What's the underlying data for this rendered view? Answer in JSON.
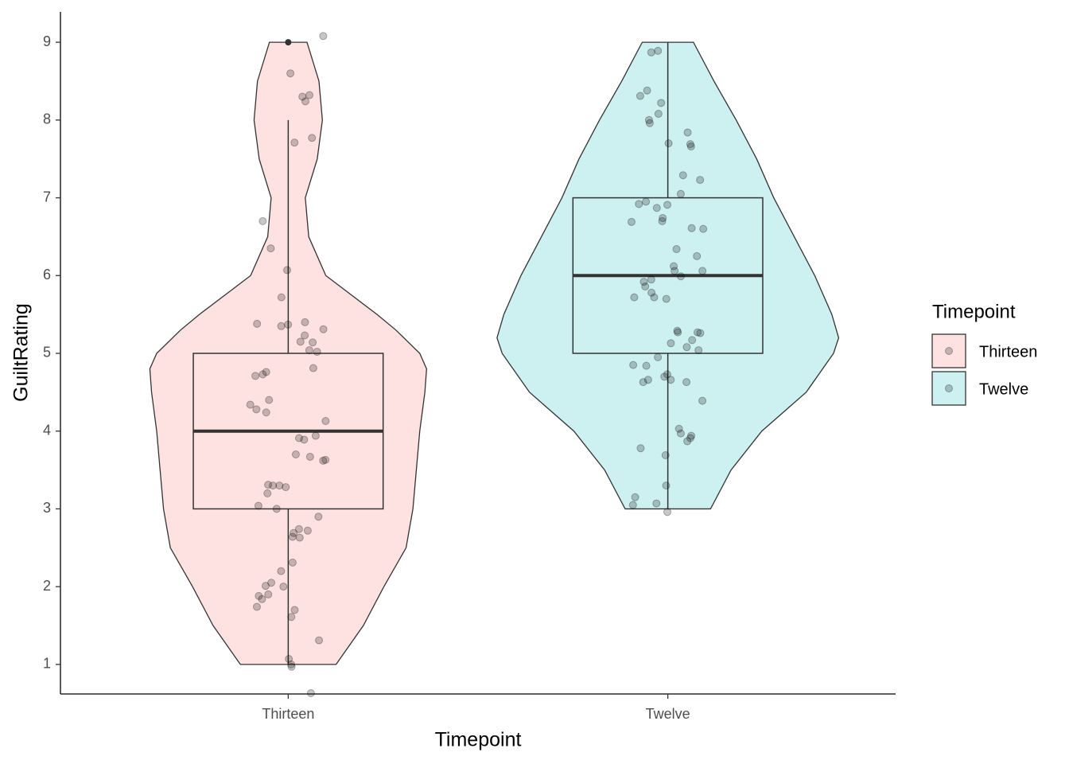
{
  "chart_data": {
    "type": "violin",
    "x_label": "Timepoint",
    "y_label": "GuiltRating",
    "legend_title": "Timepoint",
    "categories": [
      "Thirteen",
      "Twelve"
    ],
    "ylim": [
      0.62,
      9.39
    ],
    "yticks": [
      1,
      2,
      3,
      4,
      5,
      6,
      7,
      8,
      9
    ],
    "series": [
      {
        "name": "Thirteen",
        "color": "#fde2e1",
        "violin": {
          "y": [
            1,
            1.5,
            2,
            2.5,
            3,
            3.5,
            4,
            4.5,
            4.8,
            5,
            5.3,
            5.5,
            6,
            6.5,
            7,
            7.5,
            8,
            8.5,
            9
          ],
          "width": [
            0.28,
            0.44,
            0.56,
            0.69,
            0.73,
            0.75,
            0.77,
            0.8,
            0.81,
            0.77,
            0.63,
            0.52,
            0.22,
            0.12,
            0.1,
            0.17,
            0.2,
            0.18,
            0.11
          ]
        },
        "box": {
          "whisker_low": 1,
          "q1": 3,
          "median": 4,
          "q3": 5,
          "whisker_high": 8
        },
        "outliers": [
          9
        ],
        "points": [
          9.08,
          8.6,
          8.32,
          8.3,
          8.24,
          7.77,
          7.71,
          6.7,
          6.35,
          6.07,
          5.72,
          5.38,
          5.37,
          5.35,
          5.4,
          5.31,
          5.23,
          5.14,
          5.15,
          5.02,
          5.04,
          4.81,
          4.76,
          4.71,
          4.73,
          4.4,
          4.34,
          4.28,
          4.24,
          4.13,
          3.94,
          3.91,
          3.89,
          3.7,
          3.67,
          3.63,
          3.62,
          3.31,
          3.3,
          3.3,
          3.28,
          3.2,
          3.04,
          3.0,
          2.9,
          2.74,
          2.72,
          2.69,
          2.64,
          2.63,
          2.31,
          2.2,
          2.05,
          2.01,
          2.0,
          1.9,
          1.88,
          1.84,
          1.74,
          1.7,
          1.61,
          1.31,
          1.07,
          0.97,
          1.0,
          0.63
        ]
      },
      {
        "name": "Twelve",
        "color": "#cdf0f1",
        "violin": {
          "y": [
            3,
            3.5,
            4,
            4.5,
            5,
            5.2,
            5.5,
            6,
            6.5,
            7,
            7.5,
            8,
            8.5,
            9
          ],
          "width": [
            0.25,
            0.37,
            0.55,
            0.81,
            0.97,
            1,
            0.96,
            0.86,
            0.74,
            0.62,
            0.52,
            0.4,
            0.27,
            0.15
          ]
        },
        "box": {
          "whisker_low": 3,
          "q1": 5,
          "median": 6,
          "q3": 7,
          "whisker_high": 9
        },
        "outliers": [],
        "points": [
          8.89,
          8.87,
          8.38,
          8.31,
          8.22,
          8.08,
          8.0,
          7.96,
          7.84,
          7.7,
          7.69,
          7.66,
          7.29,
          7.23,
          7.05,
          6.95,
          6.92,
          6.91,
          6.87,
          6.74,
          6.7,
          6.69,
          6.61,
          6.6,
          6.34,
          6.25,
          6.12,
          6.06,
          6.06,
          5.99,
          5.95,
          5.92,
          5.86,
          5.78,
          5.72,
          5.72,
          5.7,
          5.29,
          5.27,
          5.27,
          5.26,
          5.17,
          5.13,
          5.08,
          5.04,
          4.95,
          4.85,
          4.84,
          4.73,
          4.7,
          4.66,
          4.63,
          4.63,
          4.66,
          4.39,
          4.03,
          3.97,
          3.94,
          3.91,
          3.87,
          3.78,
          3.69,
          3.3,
          3.15,
          3.07,
          3.05,
          2.96
        ]
      }
    ]
  }
}
